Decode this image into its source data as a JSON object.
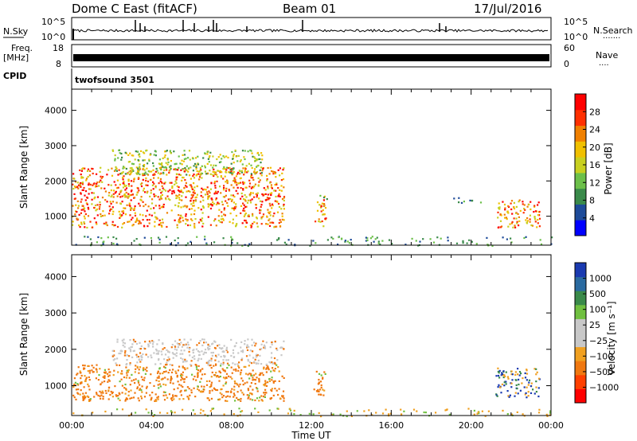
{
  "header": {
    "station": "Dome C East (fitACF)",
    "beam": "Beam 01",
    "date": "17/Jul/2016"
  },
  "strips": {
    "nsky_label": "N.Sky",
    "nsky_ticks": [
      "10^5",
      "10^0"
    ],
    "nsearch_label": "N.Search",
    "nsearch_dots": "·······",
    "nsearch_ticks": [
      "10^5",
      "10^0"
    ],
    "freq_label_1": "Freq.",
    "freq_label_2": "[MHz]",
    "freq_ticks": [
      "18",
      "8"
    ],
    "nave_label": "Nave",
    "nave_dots": "····",
    "nave_ticks": [
      "60",
      "0"
    ],
    "cpid_label": "CPID",
    "cpid_value": "twofsound 3501"
  },
  "chart_data": [
    {
      "type": "heatmap",
      "panel": "power",
      "xlabel": "",
      "ylabel": "Slant Range [km]",
      "xlim": [
        0,
        24
      ],
      "ylim": [
        180,
        4600
      ],
      "y_ticks": [
        "1000",
        "2000",
        "3000",
        "4000"
      ],
      "colorbar_label": "Power [dB]",
      "colorbar_ticks": [
        "28",
        "24",
        "20",
        "16",
        "12",
        "8",
        "4"
      ],
      "colorscale": [
        "#0000ff",
        "#1e4b99",
        "#3a8a4a",
        "#6cc04a",
        "#c8d020",
        "#f0c000",
        "#f08000",
        "#ff3000",
        "#ff0000"
      ],
      "scatter_regions": [
        {
          "t": [
            0.0,
            10.6
          ],
          "r": [
            700,
            2400
          ],
          "level": "high"
        },
        {
          "t": [
            2.0,
            9.5
          ],
          "r": [
            2200,
            2900
          ],
          "level": "mid"
        },
        {
          "t": [
            12.1,
            12.7
          ],
          "r": [
            700,
            1500
          ],
          "level": "high"
        },
        {
          "t": [
            12.4,
            12.8
          ],
          "r": [
            1500,
            1700
          ],
          "level": "mid"
        },
        {
          "t": [
            21.2,
            23.4
          ],
          "r": [
            700,
            1500
          ],
          "level": "high"
        },
        {
          "t": [
            19.0,
            20.5
          ],
          "r": [
            1400,
            1600
          ],
          "level": "low"
        },
        {
          "t": [
            0.0,
            24.0
          ],
          "r": [
            180,
            450
          ],
          "level": "low"
        }
      ]
    },
    {
      "type": "heatmap",
      "panel": "velocity",
      "xlabel": "Time UT",
      "ylabel": "Slant Range [km]",
      "xlim": [
        0,
        24
      ],
      "ylim": [
        180,
        4600
      ],
      "x_ticks": [
        "00:00",
        "04:00",
        "08:00",
        "12:00",
        "16:00",
        "20:00",
        "00:00"
      ],
      "y_ticks": [
        "1000",
        "2000",
        "3000",
        "4000"
      ],
      "colorbar_label": "Velocity [m s⁻¹]",
      "colorbar_ticks": [
        "1000",
        "500",
        "100",
        "25",
        "−25",
        "−100",
        "−500",
        "−1000"
      ],
      "colorscale": [
        "#ff0000",
        "#ff4000",
        "#f07810",
        "#f0a020",
        "#c8c8c8",
        "#c8c8c8",
        "#70c040",
        "#3a8a4a",
        "#2a6aa0",
        "#1a3ab0"
      ],
      "scatter_regions": [
        {
          "t": [
            0.0,
            10.6
          ],
          "r": [
            600,
            1600
          ],
          "level": "neg"
        },
        {
          "t": [
            2.0,
            10.6
          ],
          "r": [
            1600,
            2300
          ],
          "level": "grey"
        },
        {
          "t": [
            12.1,
            12.7
          ],
          "r": [
            700,
            1500
          ],
          "level": "neg"
        },
        {
          "t": [
            21.2,
            23.4
          ],
          "r": [
            700,
            1500
          ],
          "level": "mix"
        },
        {
          "t": [
            0.0,
            24.0
          ],
          "r": [
            180,
            400
          ],
          "level": "neg_light"
        }
      ]
    }
  ]
}
